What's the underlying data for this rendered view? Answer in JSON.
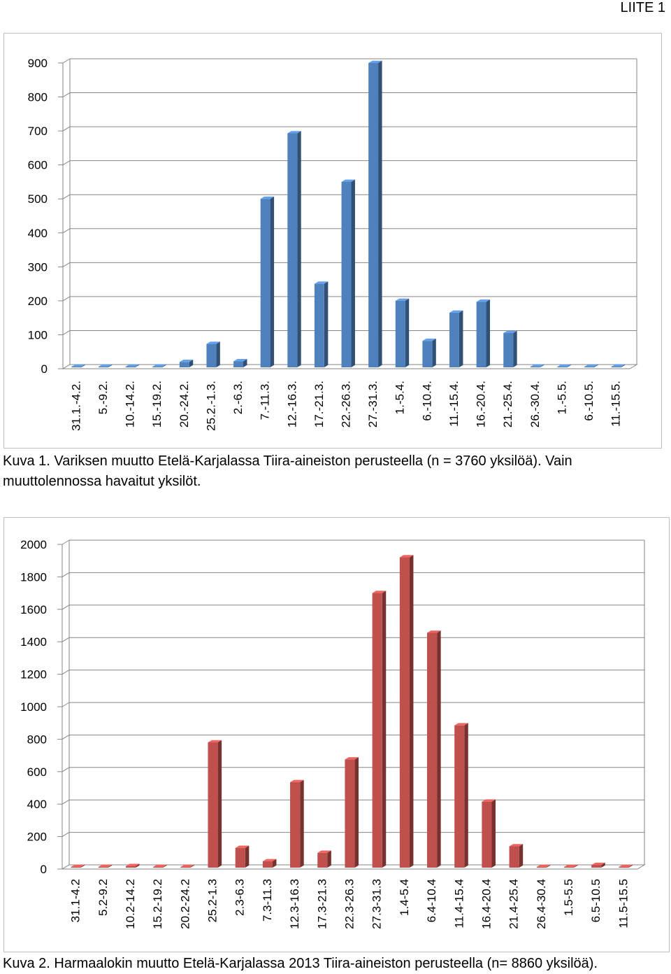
{
  "header": {
    "label": "LIITE 1"
  },
  "captions": {
    "kuva1": "Kuva 1. Variksen muutto Etelä-Karjalassa Tiira-aineiston perusteella (n = 3760 yksilöä). Vain muuttolennossa havaitut yksilöt.",
    "kuva2": "Kuva 2. Harmaalokin muutto Etelä-Karjalassa 2013 Tiira-aineiston perusteella (n= 8860 yksilöä)."
  },
  "colors": {
    "chart1_bar": "#4f81bd",
    "chart2_bar": "#c0504d"
  },
  "chart_data": [
    {
      "type": "bar",
      "title": "",
      "xlabel": "",
      "ylabel": "",
      "ylim": [
        0,
        900
      ],
      "yticks": [
        0,
        100,
        200,
        300,
        400,
        500,
        600,
        700,
        800,
        900
      ],
      "grid": true,
      "categories": [
        "31.1.-4.2.",
        "5.-9.2.",
        "10.-14.2.",
        "15.-19.2.",
        "20.-24.2.",
        "25.2.-1.3.",
        "2.-6.3.",
        "7.-11.3.",
        "12.-16.3.",
        "17.-21.3.",
        "22.-26.3.",
        "27.-31.3.",
        "1.-5.4.",
        "6.-10.4.",
        "11.-15.4.",
        "16.-20.4.",
        "21.-25.4.",
        "26.-30.4.",
        "1.-5.5.",
        "6.-10.5.",
        "11.-15.5."
      ],
      "values": [
        3,
        1,
        1,
        1,
        20,
        73,
        22,
        500,
        693,
        250,
        550,
        900,
        200,
        82,
        165,
        197,
        105,
        1,
        6,
        2,
        1
      ]
    },
    {
      "type": "bar",
      "title": "",
      "xlabel": "",
      "ylabel": "",
      "ylim": [
        0,
        2000
      ],
      "yticks": [
        0,
        200,
        400,
        600,
        800,
        1000,
        1200,
        1400,
        1600,
        1800,
        2000
      ],
      "grid": true,
      "categories": [
        "31.1-4.2",
        "5.2-9.2",
        "10.2-14.2",
        "15.2-19.2",
        "20.2-24.2",
        "25.2-1.3",
        "2.3-6.3",
        "7.3-11.3",
        "12.3-16.3",
        "17.3-21.3",
        "22.3-26.3",
        "27.3-31.3",
        "1.4-5.4",
        "6.4-10.4",
        "11.4-15.4",
        "16.4-20.4",
        "21.4-25.4",
        "26.4-30.4",
        "1.5-5.5",
        "6.5-10.5",
        "11.5-15.5"
      ],
      "values": [
        5,
        2,
        18,
        3,
        2,
        780,
        130,
        48,
        535,
        100,
        675,
        1700,
        1920,
        1455,
        885,
        415,
        140,
        3,
        2,
        25,
        3
      ]
    }
  ]
}
